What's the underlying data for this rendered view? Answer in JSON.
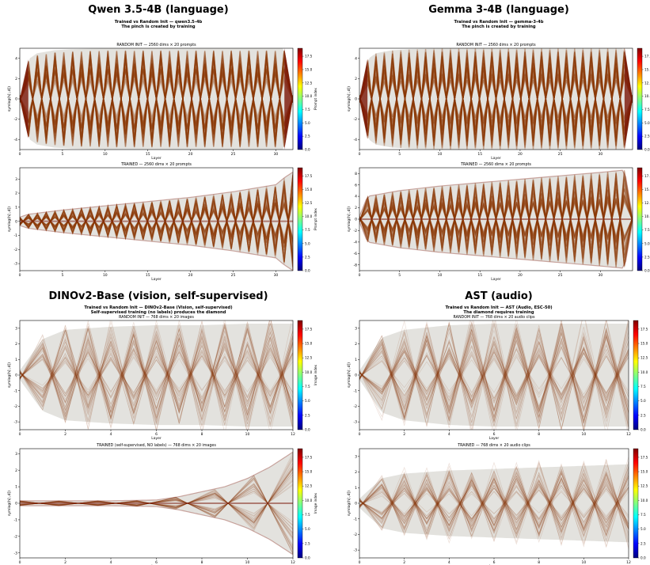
{
  "colors": {
    "trace": "#8b3a0a",
    "trace_dark": "#7a1505",
    "envelope": "#c2bfb6",
    "background": "#ffffff",
    "colorbar_stops": [
      "#7f0000",
      "#ff0000",
      "#ff8000",
      "#ffff00",
      "#80ff80",
      "#00ffff",
      "#0080ff",
      "#0000ff",
      "#00007f"
    ]
  },
  "panels": [
    {
      "title": "Qwen 3.5-4B (language)",
      "subtitle_lines": [
        "Trained vs Random Init — qwen3.5-4b",
        "The pinch is created by training"
      ],
      "charts": [
        {
          "type": "line",
          "style": "dense-diamond",
          "title": "RANDOM INIT — 2560 dims × 20 prompts",
          "xlabel": "Layer",
          "ylabel": "symlog(h[:,d])",
          "xlim": [
            0,
            32
          ],
          "ylim": [
            -5,
            5
          ],
          "xticks": [
            0,
            5,
            10,
            15,
            20,
            25,
            30
          ],
          "yticks": [
            -4,
            -2,
            0,
            2,
            4
          ],
          "envelope": {
            "x": [
              0,
              1,
              2,
              4,
              6,
              10,
              20,
              30,
              31,
              32
            ],
            "upper": [
              0.4,
              3.9,
              4.5,
              4.8,
              4.9,
              5,
              5,
              5,
              5,
              0.4
            ],
            "lower": [
              -0.4,
              -3.9,
              -4.5,
              -4.8,
              -4.9,
              -5,
              -5,
              -5,
              -5,
              -0.4
            ]
          },
          "crossings": 30,
          "colorbar": {
            "label": "Prompt index",
            "ticks": [
              "0.0",
              "2.5",
              "5.0",
              "7.5",
              "10.0",
              "12.5",
              "15.0",
              "17.5"
            ],
            "range": [
              0,
              19
            ]
          }
        },
        {
          "type": "line",
          "style": "growing-diamond",
          "title": "TRAINED — 2560 dims × 20 prompts",
          "xlabel": "Layer",
          "ylabel": "symlog(h[:,d])",
          "xlim": [
            0,
            32
          ],
          "ylim": [
            -3.5,
            3.8
          ],
          "xticks": [
            0,
            5,
            10,
            15,
            20,
            25,
            30
          ],
          "yticks": [
            -3,
            -2,
            -1,
            0,
            1,
            2,
            3
          ],
          "envelope": {
            "x": [
              0,
              1,
              5,
              10,
              15,
              20,
              25,
              30,
              31,
              32
            ],
            "upper": [
              0.3,
              0.5,
              0.8,
              1.1,
              1.4,
              1.7,
              2.1,
              2.6,
              3.1,
              3.5
            ],
            "lower": [
              -0.3,
              -0.5,
              -0.8,
              -1.1,
              -1.4,
              -1.7,
              -2.1,
              -2.6,
              -3.1,
              -3.5
            ]
          },
          "crossings": 30,
          "colorbar": {
            "label": "Prompt index",
            "ticks": [
              "0.0",
              "2.5",
              "5.0",
              "7.5",
              "10.0",
              "12.5",
              "15.0",
              "17.5"
            ],
            "range": [
              0,
              19
            ]
          }
        }
      ]
    },
    {
      "title": "Gemma 3-4B (language)",
      "subtitle_lines": [
        "Trained vs Random Init — gemma-3-4b",
        "The pinch is created by training"
      ],
      "charts": [
        {
          "type": "line",
          "style": "dense-diamond",
          "title": "RANDOM INIT — 2560 dims × 20 prompts",
          "xlabel": "Layer",
          "ylabel": "symlog(h[:,d])",
          "xlim": [
            0,
            34
          ],
          "ylim": [
            -5,
            5
          ],
          "xticks": [
            0,
            5,
            10,
            15,
            20,
            25,
            30
          ],
          "yticks": [
            -4,
            -2,
            0,
            2,
            4
          ],
          "envelope": {
            "x": [
              0,
              1,
              2,
              4,
              6,
              10,
              20,
              30,
              33,
              34
            ],
            "upper": [
              0.4,
              3.9,
              4.5,
              4.8,
              4.9,
              5,
              5,
              5,
              5,
              0.4
            ],
            "lower": [
              -0.4,
              -3.9,
              -4.5,
              -4.8,
              -4.9,
              -5,
              -5,
              -5,
              -5,
              -0.4
            ]
          },
          "crossings": 32,
          "colorbar": {
            "label": "",
            "ticks": [
              "0.0",
              "2.5",
              "5.0",
              "7.5",
              "10.0",
              "12.5",
              "15.0",
              "17.5"
            ],
            "range": [
              0,
              19
            ]
          }
        },
        {
          "type": "line",
          "style": "growing-diamond",
          "title": "TRAINED — 2560 dims × 20 prompts",
          "xlabel": "Layer",
          "ylabel": "symlog(h[:,d])",
          "xlim": [
            0,
            34
          ],
          "ylim": [
            -9,
            9
          ],
          "xticks": [
            0,
            5,
            10,
            15,
            20,
            25,
            30
          ],
          "yticks": [
            -8,
            -6,
            -4,
            -2,
            0,
            2,
            4,
            6,
            8
          ],
          "envelope": {
            "x": [
              0,
              1,
              5,
              10,
              15,
              20,
              25,
              30,
              33,
              34
            ],
            "upper": [
              0.5,
              4.0,
              5.0,
              5.8,
              6.4,
              7.0,
              7.6,
              8.2,
              8.6,
              0.5
            ],
            "lower": [
              -0.5,
              -4.0,
              -5.0,
              -5.8,
              -6.4,
              -7.0,
              -7.6,
              -8.2,
              -8.6,
              -0.5
            ]
          },
          "crossings": 32,
          "colorbar": {
            "label": "",
            "ticks": [
              "0.0",
              "2.5",
              "5.0",
              "7.5",
              "10.0",
              "12.5",
              "15.0",
              "17.5"
            ],
            "range": [
              0,
              19
            ]
          }
        }
      ]
    },
    {
      "title": "DINOv2-Base (vision, self-supervised)",
      "subtitle_lines": [
        "Trained vs Random Init — DINOv2-Base (Vision, self-supervised)",
        "Self-supervised training (no labels) produces the diamond"
      ],
      "charts": [
        {
          "type": "line",
          "style": "spread-diamond",
          "title": "RANDOM INIT — 768 dims × 20 images",
          "xlabel": "Layer",
          "ylabel": "symlog(h[:,d])",
          "xlim": [
            0,
            12
          ],
          "ylim": [
            -3.5,
            3.5
          ],
          "xticks": [
            0,
            2,
            4,
            6,
            8,
            10,
            12
          ],
          "yticks": [
            -3,
            -2,
            -1,
            0,
            1,
            2,
            3
          ],
          "envelope": {
            "x": [
              0,
              1,
              2,
              4,
              6,
              8,
              10,
              12
            ],
            "upper": [
              0.3,
              2.3,
              2.9,
              3.1,
              3.2,
              3.2,
              3.3,
              3.3
            ],
            "lower": [
              -0.3,
              -2.3,
              -2.9,
              -3.1,
              -3.2,
              -3.2,
              -3.3,
              -3.3
            ]
          },
          "crossings": 11,
          "colorbar": {
            "label": "Image index",
            "ticks": [
              "0.0",
              "2.5",
              "5.0",
              "7.5",
              "10.0",
              "12.5",
              "15.0",
              "17.5"
            ],
            "range": [
              0,
              19
            ]
          }
        },
        {
          "type": "line",
          "style": "late-diamond",
          "title": "TRAINED (self-supervised, NO labels) — 768 dims × 20 images",
          "xlabel": "Layer",
          "ylabel": "symlog(h[:,d])",
          "xlim": [
            0,
            12
          ],
          "ylim": [
            -3.3,
            3.3
          ],
          "xticks": [
            0,
            2,
            4,
            6,
            8,
            10,
            12
          ],
          "yticks": [
            -3,
            -2,
            -1,
            0,
            1,
            2,
            3
          ],
          "envelope": {
            "x": [
              0,
              2,
              4,
              6,
              7,
              8,
              9,
              10,
              11,
              12
            ],
            "upper": [
              0.15,
              0.15,
              0.15,
              0.2,
              0.4,
              0.7,
              1.0,
              1.5,
              2.2,
              3.1
            ],
            "lower": [
              -0.15,
              -0.15,
              -0.15,
              -0.2,
              -0.4,
              -0.7,
              -1.0,
              -1.5,
              -2.2,
              -3.1
            ]
          },
          "crossings": 6,
          "colorbar": {
            "label": "Image index",
            "ticks": [
              "0.0",
              "2.5",
              "5.0",
              "7.5",
              "10.0",
              "12.5",
              "15.0",
              "17.5"
            ],
            "range": [
              0,
              19
            ]
          }
        }
      ]
    },
    {
      "title": "AST (audio)",
      "subtitle_lines": [
        "Trained vs Random Init — AST (Audio, ESC-50)",
        "The diamond requires training"
      ],
      "charts": [
        {
          "type": "line",
          "style": "spread-diamond",
          "title": "RANDOM INIT — 768 dims × 20 audio clips",
          "xlabel": "Layer",
          "ylabel": "symlog(h[:,d])",
          "xlim": [
            0,
            12
          ],
          "ylim": [
            -3.5,
            3.5
          ],
          "xticks": [
            0,
            2,
            4,
            6,
            8,
            10,
            12
          ],
          "yticks": [
            -3,
            -2,
            -1,
            0,
            1,
            2,
            3
          ],
          "envelope": {
            "x": [
              0,
              1,
              2,
              4,
              6,
              8,
              10,
              12
            ],
            "upper": [
              0.3,
              2.4,
              2.9,
              3.2,
              3.3,
              3.3,
              3.3,
              3.3
            ],
            "lower": [
              -0.3,
              -2.4,
              -2.9,
              -3.2,
              -3.3,
              -3.3,
              -3.3,
              -3.3
            ]
          },
          "crossings": 11,
          "colorbar": {
            "label": "",
            "ticks": [
              "0.0",
              "2.5",
              "5.0",
              "7.5",
              "10.0",
              "12.5",
              "15.0",
              "17.5"
            ],
            "range": [
              0,
              19
            ]
          }
        },
        {
          "type": "line",
          "style": "spread-diamond",
          "title": "TRAINED — 768 dims × 20 audio clips",
          "xlabel": "Layer",
          "ylabel": "symlog(h[:,d])",
          "xlim": [
            0,
            12
          ],
          "ylim": [
            -3.5,
            3.5
          ],
          "xticks": [
            0,
            2,
            4,
            6,
            8,
            10,
            12
          ],
          "yticks": [
            -3,
            -2,
            -1,
            0,
            1,
            2,
            3
          ],
          "envelope": {
            "x": [
              0,
              1,
              2,
              4,
              6,
              8,
              10,
              12
            ],
            "upper": [
              0.3,
              1.6,
              1.9,
              2.1,
              2.2,
              2.3,
              2.4,
              2.5
            ],
            "lower": [
              -0.3,
              -1.6,
              -1.9,
              -2.1,
              -2.2,
              -2.3,
              -2.4,
              -2.5
            ]
          },
          "crossings": 11,
          "colorbar": {
            "label": "",
            "ticks": [
              "0.0",
              "2.5",
              "5.0",
              "7.5",
              "10.0",
              "12.5",
              "15.0",
              "17.5"
            ],
            "range": [
              0,
              19
            ]
          }
        }
      ]
    }
  ]
}
